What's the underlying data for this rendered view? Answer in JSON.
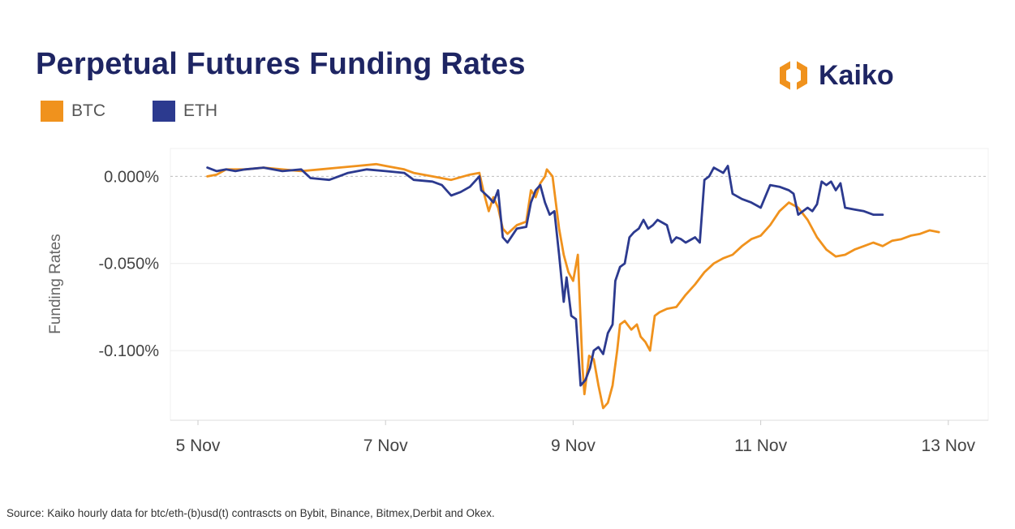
{
  "chart_data": {
    "type": "line",
    "title": "Perpetual Futures Funding Rates",
    "ylabel": "Funding Rates",
    "xlabel": "",
    "x_ticks": [
      "5 Nov",
      "7 Nov",
      "9 Nov",
      "11 Nov",
      "13 Nov"
    ],
    "y_ticks": [
      "0.000%",
      "-0.050%",
      "-0.100%"
    ],
    "y_tick_values": [
      0,
      -0.05,
      -0.1
    ],
    "xlim_days": [
      5,
      13.2
    ],
    "ylim": [
      -0.14,
      0.016
    ],
    "legend_position": "top-left",
    "x_unit": "day of November",
    "series": [
      {
        "name": "BTC",
        "color": "#f0921d",
        "points": [
          [
            5.1,
            0.0
          ],
          [
            5.2,
            0.001
          ],
          [
            5.3,
            0.004
          ],
          [
            5.5,
            0.004
          ],
          [
            5.7,
            0.005
          ],
          [
            5.9,
            0.004
          ],
          [
            6.1,
            0.003
          ],
          [
            6.3,
            0.004
          ],
          [
            6.5,
            0.005
          ],
          [
            6.7,
            0.006
          ],
          [
            6.9,
            0.007
          ],
          [
            7.0,
            0.006
          ],
          [
            7.2,
            0.004
          ],
          [
            7.3,
            0.002
          ],
          [
            7.5,
            0.0
          ],
          [
            7.7,
            -0.002
          ],
          [
            7.9,
            0.001
          ],
          [
            8.0,
            0.002
          ],
          [
            8.05,
            -0.01
          ],
          [
            8.1,
            -0.02
          ],
          [
            8.15,
            -0.012
          ],
          [
            8.2,
            -0.018
          ],
          [
            8.25,
            -0.03
          ],
          [
            8.3,
            -0.033
          ],
          [
            8.4,
            -0.028
          ],
          [
            8.5,
            -0.026
          ],
          [
            8.55,
            -0.008
          ],
          [
            8.6,
            -0.012
          ],
          [
            8.65,
            -0.004
          ],
          [
            8.7,
            0.0
          ],
          [
            8.72,
            0.004
          ],
          [
            8.78,
            0.0
          ],
          [
            8.85,
            -0.03
          ],
          [
            8.9,
            -0.045
          ],
          [
            8.95,
            -0.055
          ],
          [
            9.0,
            -0.06
          ],
          [
            9.05,
            -0.045
          ],
          [
            9.1,
            -0.11
          ],
          [
            9.12,
            -0.125
          ],
          [
            9.17,
            -0.103
          ],
          [
            9.22,
            -0.105
          ],
          [
            9.27,
            -0.12
          ],
          [
            9.32,
            -0.133
          ],
          [
            9.37,
            -0.13
          ],
          [
            9.42,
            -0.12
          ],
          [
            9.47,
            -0.1
          ],
          [
            9.5,
            -0.085
          ],
          [
            9.55,
            -0.083
          ],
          [
            9.62,
            -0.088
          ],
          [
            9.68,
            -0.085
          ],
          [
            9.72,
            -0.092
          ],
          [
            9.77,
            -0.095
          ],
          [
            9.82,
            -0.1
          ],
          [
            9.87,
            -0.08
          ],
          [
            9.92,
            -0.078
          ],
          [
            10.0,
            -0.076
          ],
          [
            10.1,
            -0.075
          ],
          [
            10.2,
            -0.068
          ],
          [
            10.3,
            -0.062
          ],
          [
            10.4,
            -0.055
          ],
          [
            10.5,
            -0.05
          ],
          [
            10.6,
            -0.047
          ],
          [
            10.7,
            -0.045
          ],
          [
            10.8,
            -0.04
          ],
          [
            10.9,
            -0.036
          ],
          [
            11.0,
            -0.034
          ],
          [
            11.1,
            -0.028
          ],
          [
            11.2,
            -0.02
          ],
          [
            11.3,
            -0.015
          ],
          [
            11.4,
            -0.018
          ],
          [
            11.5,
            -0.025
          ],
          [
            11.6,
            -0.035
          ],
          [
            11.7,
            -0.042
          ],
          [
            11.8,
            -0.046
          ],
          [
            11.9,
            -0.045
          ],
          [
            12.0,
            -0.042
          ],
          [
            12.1,
            -0.04
          ],
          [
            12.2,
            -0.038
          ],
          [
            12.3,
            -0.04
          ],
          [
            12.4,
            -0.037
          ],
          [
            12.5,
            -0.036
          ],
          [
            12.6,
            -0.034
          ],
          [
            12.7,
            -0.033
          ],
          [
            12.8,
            -0.031
          ],
          [
            12.9,
            -0.032
          ]
        ]
      },
      {
        "name": "ETH",
        "color": "#2c3a8f",
        "points": [
          [
            5.1,
            0.005
          ],
          [
            5.2,
            0.003
          ],
          [
            5.3,
            0.004
          ],
          [
            5.4,
            0.003
          ],
          [
            5.5,
            0.004
          ],
          [
            5.7,
            0.005
          ],
          [
            5.9,
            0.003
          ],
          [
            6.1,
            0.004
          ],
          [
            6.2,
            -0.001
          ],
          [
            6.4,
            -0.002
          ],
          [
            6.5,
            0.0
          ],
          [
            6.6,
            0.002
          ],
          [
            6.8,
            0.004
          ],
          [
            7.0,
            0.003
          ],
          [
            7.2,
            0.002
          ],
          [
            7.3,
            -0.002
          ],
          [
            7.5,
            -0.003
          ],
          [
            7.6,
            -0.005
          ],
          [
            7.7,
            -0.011
          ],
          [
            7.8,
            -0.009
          ],
          [
            7.9,
            -0.006
          ],
          [
            8.0,
            0.0
          ],
          [
            8.02,
            -0.008
          ],
          [
            8.1,
            -0.012
          ],
          [
            8.15,
            -0.015
          ],
          [
            8.2,
            -0.008
          ],
          [
            8.25,
            -0.035
          ],
          [
            8.3,
            -0.038
          ],
          [
            8.4,
            -0.03
          ],
          [
            8.5,
            -0.029
          ],
          [
            8.55,
            -0.015
          ],
          [
            8.6,
            -0.008
          ],
          [
            8.65,
            -0.005
          ],
          [
            8.7,
            -0.015
          ],
          [
            8.75,
            -0.022
          ],
          [
            8.8,
            -0.02
          ],
          [
            8.85,
            -0.045
          ],
          [
            8.9,
            -0.072
          ],
          [
            8.93,
            -0.058
          ],
          [
            8.98,
            -0.08
          ],
          [
            9.03,
            -0.082
          ],
          [
            9.08,
            -0.12
          ],
          [
            9.13,
            -0.117
          ],
          [
            9.18,
            -0.11
          ],
          [
            9.22,
            -0.1
          ],
          [
            9.27,
            -0.098
          ],
          [
            9.32,
            -0.102
          ],
          [
            9.37,
            -0.09
          ],
          [
            9.42,
            -0.085
          ],
          [
            9.45,
            -0.06
          ],
          [
            9.5,
            -0.052
          ],
          [
            9.55,
            -0.05
          ],
          [
            9.6,
            -0.035
          ],
          [
            9.65,
            -0.032
          ],
          [
            9.7,
            -0.03
          ],
          [
            9.75,
            -0.025
          ],
          [
            9.8,
            -0.03
          ],
          [
            9.85,
            -0.028
          ],
          [
            9.9,
            -0.025
          ],
          [
            10.0,
            -0.028
          ],
          [
            10.05,
            -0.038
          ],
          [
            10.1,
            -0.035
          ],
          [
            10.15,
            -0.036
          ],
          [
            10.2,
            -0.038
          ],
          [
            10.3,
            -0.035
          ],
          [
            10.35,
            -0.038
          ],
          [
            10.4,
            -0.002
          ],
          [
            10.45,
            0.0
          ],
          [
            10.5,
            0.005
          ],
          [
            10.6,
            0.002
          ],
          [
            10.65,
            0.006
          ],
          [
            10.7,
            -0.01
          ],
          [
            10.8,
            -0.013
          ],
          [
            10.9,
            -0.015
          ],
          [
            11.0,
            -0.018
          ],
          [
            11.1,
            -0.005
          ],
          [
            11.2,
            -0.006
          ],
          [
            11.3,
            -0.008
          ],
          [
            11.35,
            -0.01
          ],
          [
            11.4,
            -0.022
          ],
          [
            11.5,
            -0.018
          ],
          [
            11.55,
            -0.02
          ],
          [
            11.6,
            -0.016
          ],
          [
            11.65,
            -0.003
          ],
          [
            11.7,
            -0.005
          ],
          [
            11.75,
            -0.003
          ],
          [
            11.8,
            -0.008
          ],
          [
            11.85,
            -0.004
          ],
          [
            11.9,
            -0.018
          ],
          [
            12.0,
            -0.019
          ],
          [
            12.1,
            -0.02
          ],
          [
            12.2,
            -0.022
          ],
          [
            12.3,
            -0.022
          ]
        ]
      }
    ]
  },
  "brand": {
    "name": "Kaiko",
    "mark_color": "#f0921d",
    "text_color": "#1e2563"
  },
  "source": "Source: Kaiko hourly  data for btc/eth-(b)usd(t) contrascts on Bybit, Binance, Bitmex,Derbit and Okex."
}
